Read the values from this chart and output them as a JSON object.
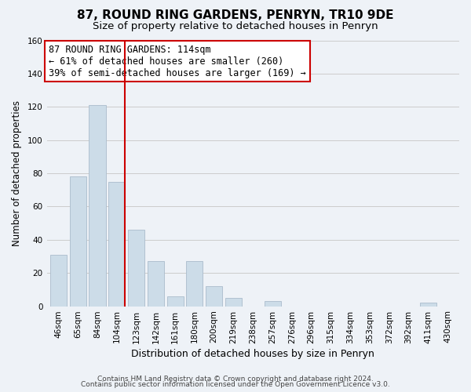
{
  "title": "87, ROUND RING GARDENS, PENRYN, TR10 9DE",
  "subtitle": "Size of property relative to detached houses in Penryn",
  "xlabel": "Distribution of detached houses by size in Penryn",
  "ylabel": "Number of detached properties",
  "categories": [
    "46sqm",
    "65sqm",
    "84sqm",
    "104sqm",
    "123sqm",
    "142sqm",
    "161sqm",
    "180sqm",
    "200sqm",
    "219sqm",
    "238sqm",
    "257sqm",
    "276sqm",
    "296sqm",
    "315sqm",
    "334sqm",
    "353sqm",
    "372sqm",
    "392sqm",
    "411sqm",
    "430sqm"
  ],
  "values": [
    31,
    78,
    121,
    75,
    46,
    27,
    6,
    27,
    12,
    5,
    0,
    3,
    0,
    0,
    0,
    0,
    0,
    0,
    0,
    2,
    0
  ],
  "bar_color": "#ccdce8",
  "bar_edge_color": "#aabccc",
  "highlight_bar_index": 3,
  "highlight_line_color": "#cc0000",
  "annotation_line1": "87 ROUND RING GARDENS: 114sqm",
  "annotation_line2": "← 61% of detached houses are smaller (260)",
  "annotation_line3": "39% of semi-detached houses are larger (169) →",
  "annotation_box_edge_color": "#cc0000",
  "annotation_box_face_color": "#ffffff",
  "ylim": [
    0,
    160
  ],
  "yticks": [
    0,
    20,
    40,
    60,
    80,
    100,
    120,
    140,
    160
  ],
  "grid_color": "#cccccc",
  "background_color": "#eef2f7",
  "footer_line1": "Contains HM Land Registry data © Crown copyright and database right 2024.",
  "footer_line2": "Contains public sector information licensed under the Open Government Licence v3.0.",
  "title_fontsize": 11,
  "subtitle_fontsize": 9.5,
  "xlabel_fontsize": 9,
  "ylabel_fontsize": 8.5,
  "tick_fontsize": 7.5,
  "annotation_fontsize": 8.5,
  "footer_fontsize": 6.5
}
